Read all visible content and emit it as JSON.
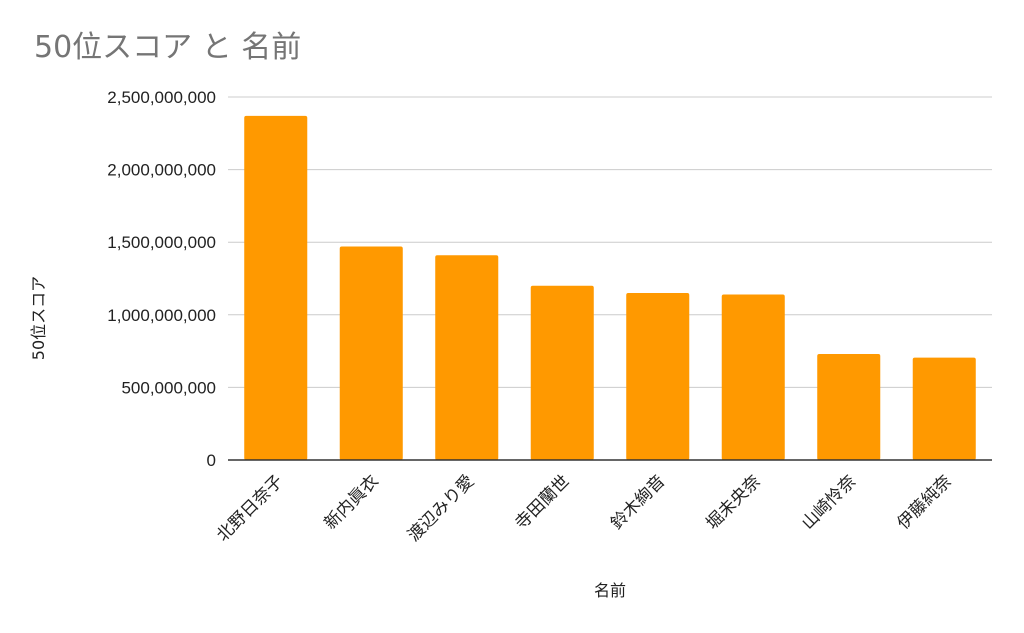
{
  "chart_data": {
    "type": "bar",
    "title": "50位スコア と 名前",
    "xlabel": "名前",
    "ylabel": "50位スコア",
    "categories": [
      "北野日奈子",
      "新内眞衣",
      "渡辺みり愛",
      "寺田蘭世",
      "鈴木絢音",
      "堀未央奈",
      "山崎怜奈",
      "伊藤純奈"
    ],
    "series": [
      {
        "values": [
          2370000000,
          1470000000,
          1410000000,
          1200000000,
          1150000000,
          1140000000,
          730000000,
          705000000
        ]
      }
    ],
    "ylim": [
      0,
      2500000000
    ],
    "yticks": [
      0,
      500000000,
      1000000000,
      1500000000,
      2000000000,
      2500000000
    ],
    "ytick_labels": [
      "0",
      "500,000,000",
      "1,000,000,000",
      "1,500,000,000",
      "2,000,000,000",
      "2,500,000,000"
    ],
    "grid": true,
    "legend": "none",
    "colors": {
      "bar": "#ff9900",
      "grid": "#cccccc",
      "axis": "#333333",
      "title": "#757575"
    }
  }
}
